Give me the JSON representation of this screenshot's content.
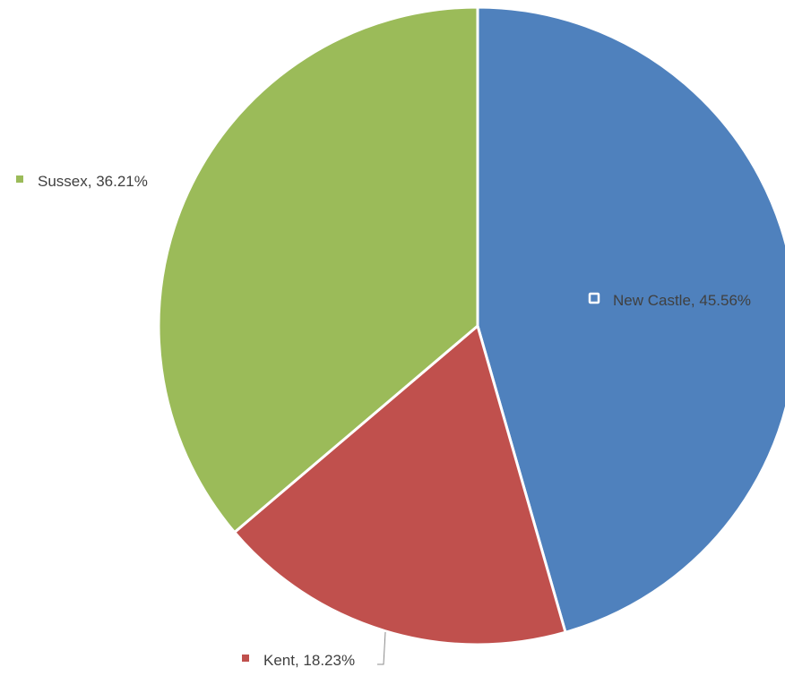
{
  "chart_data": {
    "type": "pie",
    "title": "",
    "categories": [
      "New Castle",
      "Kent",
      "Sussex"
    ],
    "values": [
      45.56,
      18.23,
      36.21
    ],
    "unit": "%",
    "colors": [
      "#4f81bd",
      "#c0504d",
      "#9bbb59"
    ],
    "labels": [
      {
        "text": "New Castle, 45.56%"
      },
      {
        "text": "Kent, 18.23%"
      },
      {
        "text": "Sussex, 36.21%"
      }
    ],
    "legend": "none"
  }
}
